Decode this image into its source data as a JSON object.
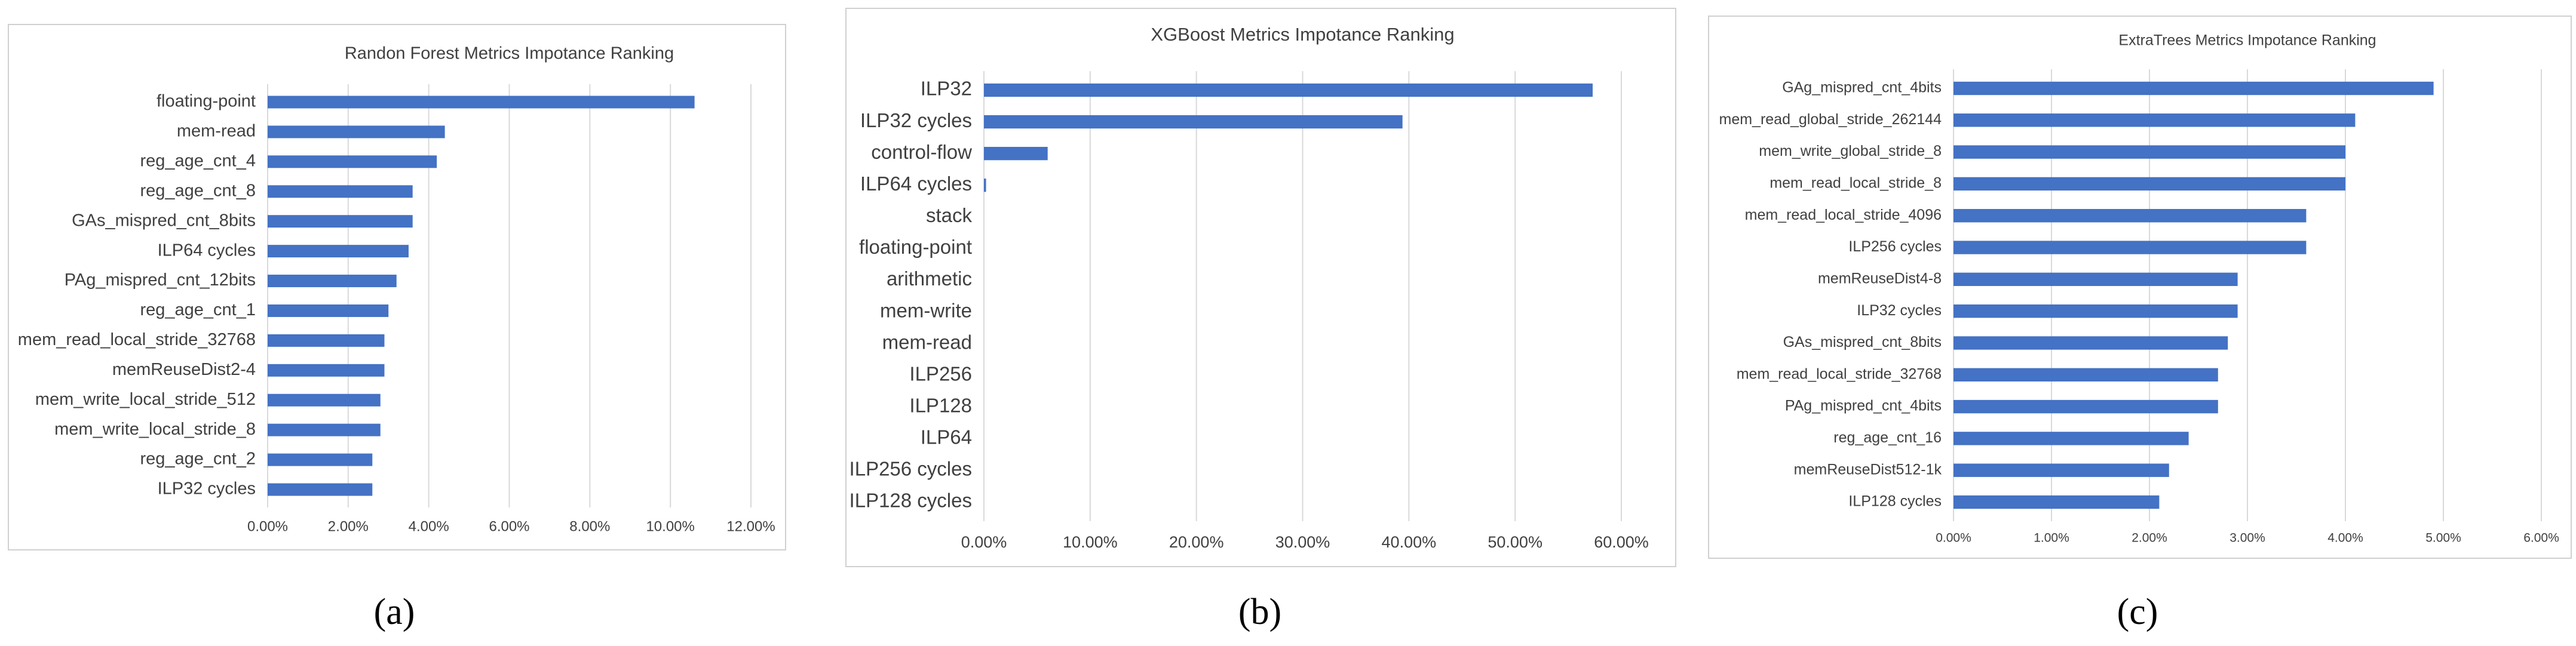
{
  "chart_data": [
    {
      "type": "barh",
      "title": "Randon Forest Metrics Impotance Ranking",
      "panel_label": "(a)",
      "categories": [
        "floating-point",
        "mem-read",
        "reg_age_cnt_4",
        "reg_age_cnt_8",
        "GAs_mispred_cnt_8bits",
        "ILP64 cycles",
        "PAg_mispred_cnt_12bits",
        "reg_age_cnt_1",
        "mem_read_local_stride_32768",
        "memReuseDist2-4",
        "mem_write_local_stride_512",
        "mem_write_local_stride_8",
        "reg_age_cnt_2",
        "ILP32 cycles"
      ],
      "values": [
        10.6,
        4.4,
        4.2,
        3.6,
        3.6,
        3.5,
        3.2,
        3.0,
        2.9,
        2.9,
        2.8,
        2.8,
        2.6,
        2.6
      ],
      "color": "#4472c4",
      "xlim": [
        0,
        12
      ],
      "xticks": [
        {
          "value": 0,
          "label": "0.00%"
        },
        {
          "value": 2,
          "label": "2.00%"
        },
        {
          "value": 4,
          "label": "4.00%"
        },
        {
          "value": 6,
          "label": "6.00%"
        },
        {
          "value": 8,
          "label": "8.00%"
        },
        {
          "value": 10,
          "label": "10.00%"
        },
        {
          "value": 12,
          "label": "12.00%"
        }
      ],
      "grid": true
    },
    {
      "type": "barh",
      "title": "XGBoost Metrics Impotance Ranking",
      "panel_label": "(b)",
      "categories": [
        "ILP32",
        "ILP32 cycles",
        "control-flow",
        "ILP64 cycles",
        "stack",
        "floating-point",
        "arithmetic",
        "mem-write",
        "mem-read",
        "ILP256",
        "ILP128",
        "ILP64",
        "ILP256 cycles",
        "ILP128 cycles"
      ],
      "values": [
        57.3,
        39.4,
        6.0,
        0.2,
        0,
        0,
        0,
        0,
        0,
        0,
        0,
        0,
        0,
        0
      ],
      "color": "#4472c4",
      "xlim": [
        0,
        60
      ],
      "xticks": [
        {
          "value": 0,
          "label": "0.00%"
        },
        {
          "value": 10,
          "label": "10.00%"
        },
        {
          "value": 20,
          "label": "20.00%"
        },
        {
          "value": 30,
          "label": "30.00%"
        },
        {
          "value": 40,
          "label": "40.00%"
        },
        {
          "value": 50,
          "label": "50.00%"
        },
        {
          "value": 60,
          "label": "60.00%"
        }
      ],
      "grid": true
    },
    {
      "type": "barh",
      "title": "ExtraTrees Metrics Impotance Ranking",
      "panel_label": "(c)",
      "categories": [
        "GAg_mispred_cnt_4bits",
        "mem_read_global_stride_262144",
        "mem_write_global_stride_8",
        "mem_read_local_stride_8",
        "mem_read_local_stride_4096",
        "ILP256 cycles",
        "memReuseDist4-8",
        "ILP32 cycles",
        "GAs_mispred_cnt_8bits",
        "mem_read_local_stride_32768",
        "PAg_mispred_cnt_4bits",
        "reg_age_cnt_16",
        "memReuseDist512-1k",
        "ILP128 cycles"
      ],
      "values": [
        4.9,
        4.1,
        4.0,
        4.0,
        3.6,
        3.6,
        2.9,
        2.9,
        2.8,
        2.7,
        2.7,
        2.4,
        2.2,
        2.1
      ],
      "color": "#4472c4",
      "xlim": [
        0,
        6
      ],
      "xticks": [
        {
          "value": 0,
          "label": "0.00%"
        },
        {
          "value": 1,
          "label": "1.00%"
        },
        {
          "value": 2,
          "label": "2.00%"
        },
        {
          "value": 3,
          "label": "3.00%"
        },
        {
          "value": 4,
          "label": "4.00%"
        },
        {
          "value": 5,
          "label": "5.00%"
        },
        {
          "value": 6,
          "label": "6.00%"
        }
      ],
      "grid": true
    }
  ]
}
